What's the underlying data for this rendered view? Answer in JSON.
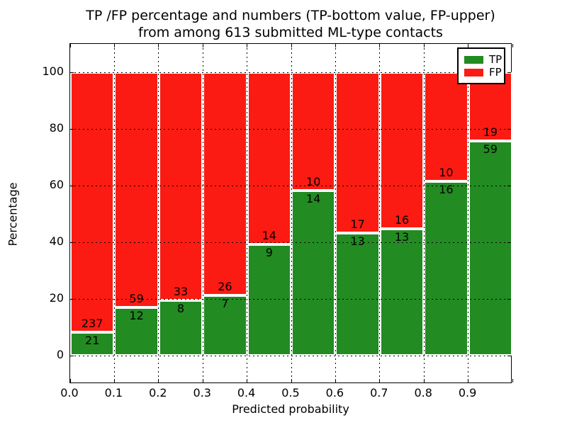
{
  "title": {
    "line1": "TP /FP percentage and numbers (TP-bottom value, FP-upper)",
    "line2": "from among 613 submitted ML-type contacts"
  },
  "axes": {
    "xlabel": "Predicted probability",
    "ylabel": "Percentage"
  },
  "legend": {
    "position": "upper right",
    "items": [
      {
        "label": "TP",
        "color": "#228b22"
      },
      {
        "label": "FP",
        "color": "#fb1b12"
      }
    ]
  },
  "colors": {
    "tp_green": "#228b22",
    "fp_red": "#fb1b12",
    "grid": "#000000",
    "background": "#ffffff"
  },
  "chart_data": {
    "type": "bar",
    "stacked": true,
    "orientation": "vertical",
    "total_contacts": 613,
    "xlabel": "Predicted probability",
    "ylabel": "Percentage",
    "xlim": [
      0.0,
      1.0
    ],
    "ylim": [
      -10,
      110
    ],
    "grid": "dotted both axes",
    "legend_position": "upper right",
    "xtick_labels": [
      "0.0",
      "0.1",
      "0.2",
      "0.3",
      "0.4",
      "0.5",
      "0.6",
      "0.7",
      "0.8",
      "0.9"
    ],
    "yticks": [
      0,
      20,
      40,
      60,
      80,
      100
    ],
    "bin_width": 0.1,
    "series_note": "green TP percentage stacked below red FP percentage, totals 100%; labels show raw counts",
    "bins": [
      {
        "range": "0.0-0.1",
        "tp": 21,
        "fp": 237,
        "tp_pct": 8.14
      },
      {
        "range": "0.1-0.2",
        "tp": 12,
        "fp": 59,
        "tp_pct": 16.9
      },
      {
        "range": "0.2-0.3",
        "tp": 8,
        "fp": 33,
        "tp_pct": 19.51
      },
      {
        "range": "0.3-0.4",
        "tp": 7,
        "fp": 26,
        "tp_pct": 21.21
      },
      {
        "range": "0.4-0.5",
        "tp": 9,
        "fp": 14,
        "tp_pct": 39.13
      },
      {
        "range": "0.5-0.6",
        "tp": 14,
        "fp": 10,
        "tp_pct": 58.33
      },
      {
        "range": "0.6-0.7",
        "tp": 13,
        "fp": 17,
        "tp_pct": 43.33
      },
      {
        "range": "0.7-0.8",
        "tp": 13,
        "fp": 16,
        "tp_pct": 44.83
      },
      {
        "range": "0.8-0.9",
        "tp": 16,
        "fp": 10,
        "tp_pct": 61.54
      },
      {
        "range": "0.9-1.0",
        "tp": 59,
        "fp": 19,
        "tp_pct": 75.64
      }
    ]
  }
}
